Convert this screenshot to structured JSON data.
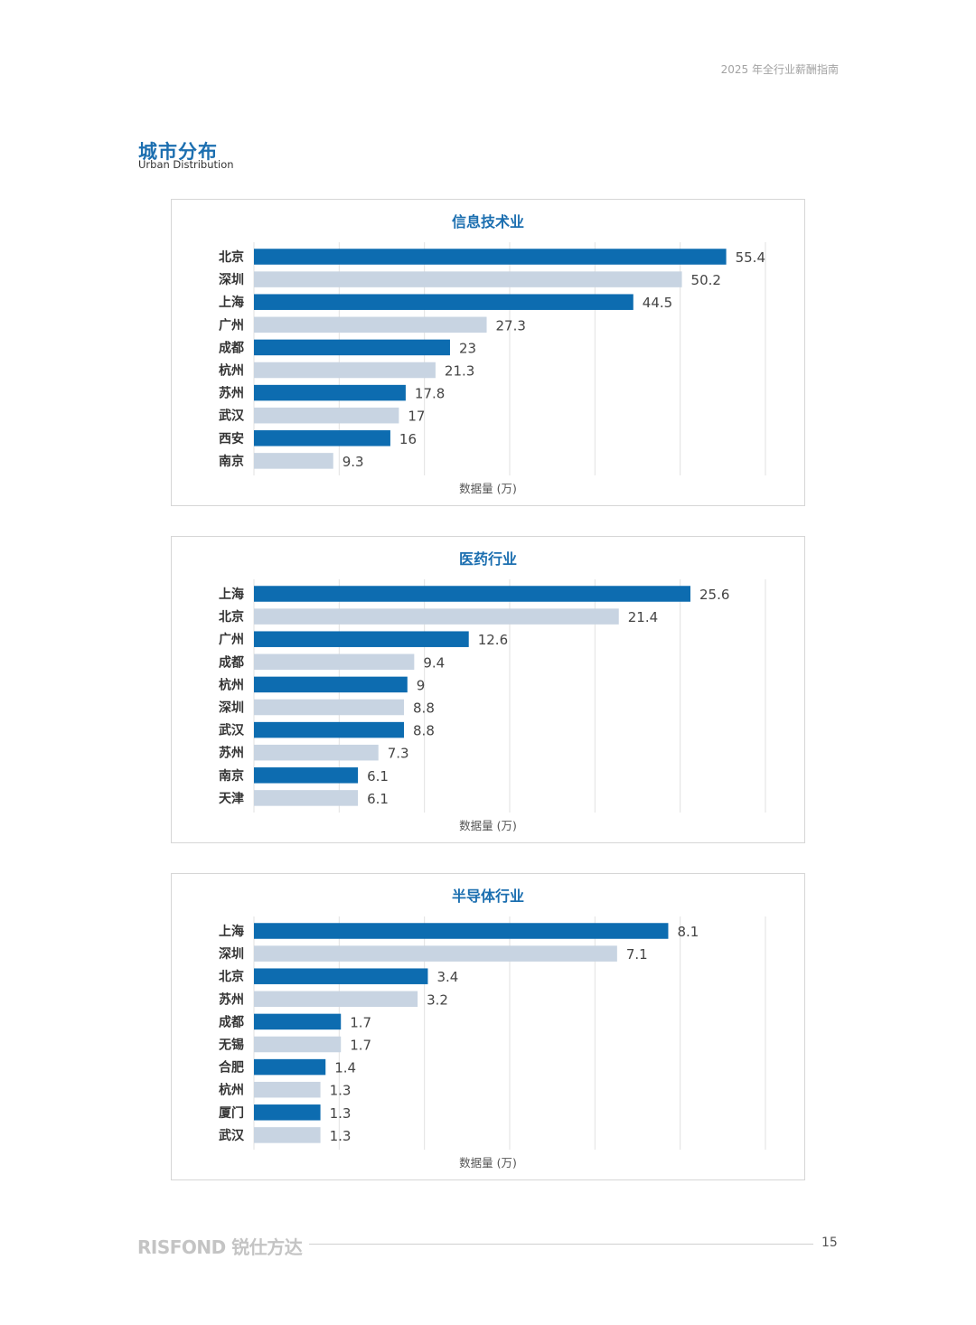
{
  "header": {
    "doc_title": "2025 年全行业薪酬指南"
  },
  "section": {
    "title": "城市分布",
    "subtitle": "Urban Distribution"
  },
  "colors": {
    "dark": "#0d6cb0",
    "light": "#c8d4e2",
    "title": "#1c6fb0",
    "grid": "#e2e2e2"
  },
  "chart_data": [
    {
      "type": "bar",
      "orientation": "horizontal",
      "title": "信息技术业",
      "xlabel": "数据量 (万)",
      "xlim": [
        0,
        60
      ],
      "grid": true,
      "categories": [
        "北京",
        "深圳",
        "上海",
        "广州",
        "成都",
        "杭州",
        "苏州",
        "武汉",
        "西安",
        "南京"
      ],
      "values": [
        55.4,
        50.2,
        44.5,
        27.3,
        23,
        21.3,
        17.8,
        17,
        16,
        9.3
      ],
      "value_labels": [
        "55.4",
        "50.2",
        "44.5",
        "27.3",
        "23",
        "21.3",
        "17.8",
        "17",
        "16",
        "9.3"
      ]
    },
    {
      "type": "bar",
      "orientation": "horizontal",
      "title": "医药行业",
      "xlabel": "数据量 (万)",
      "xlim": [
        0,
        30
      ],
      "grid": true,
      "categories": [
        "上海",
        "北京",
        "广州",
        "成都",
        "杭州",
        "深圳",
        "武汉",
        "苏州",
        "南京",
        "天津"
      ],
      "values": [
        25.6,
        21.4,
        12.6,
        9.4,
        9,
        8.8,
        8.8,
        7.3,
        6.1,
        6.1
      ],
      "value_labels": [
        "25.6",
        "21.4",
        "12.6",
        "9.4",
        "9",
        "8.8",
        "8.8",
        "7.3",
        "6.1",
        "6.1"
      ]
    },
    {
      "type": "bar",
      "orientation": "horizontal",
      "title": "半导体行业",
      "xlabel": "数据量 (万)",
      "xlim": [
        0,
        10
      ],
      "grid": true,
      "categories": [
        "上海",
        "深圳",
        "北京",
        "苏州",
        "成都",
        "无锡",
        "合肥",
        "杭州",
        "厦门",
        "武汉"
      ],
      "values": [
        8.1,
        7.1,
        3.4,
        3.2,
        1.7,
        1.7,
        1.4,
        1.3,
        1.3,
        1.3
      ],
      "value_labels": [
        "8.1",
        "7.1",
        "3.4",
        "3.2",
        "1.7",
        "1.7",
        "1.4",
        "1.3",
        "1.3",
        "1.3"
      ]
    }
  ],
  "footer": {
    "brand": "RISFOND 锐仕方达",
    "page_number": "15"
  }
}
